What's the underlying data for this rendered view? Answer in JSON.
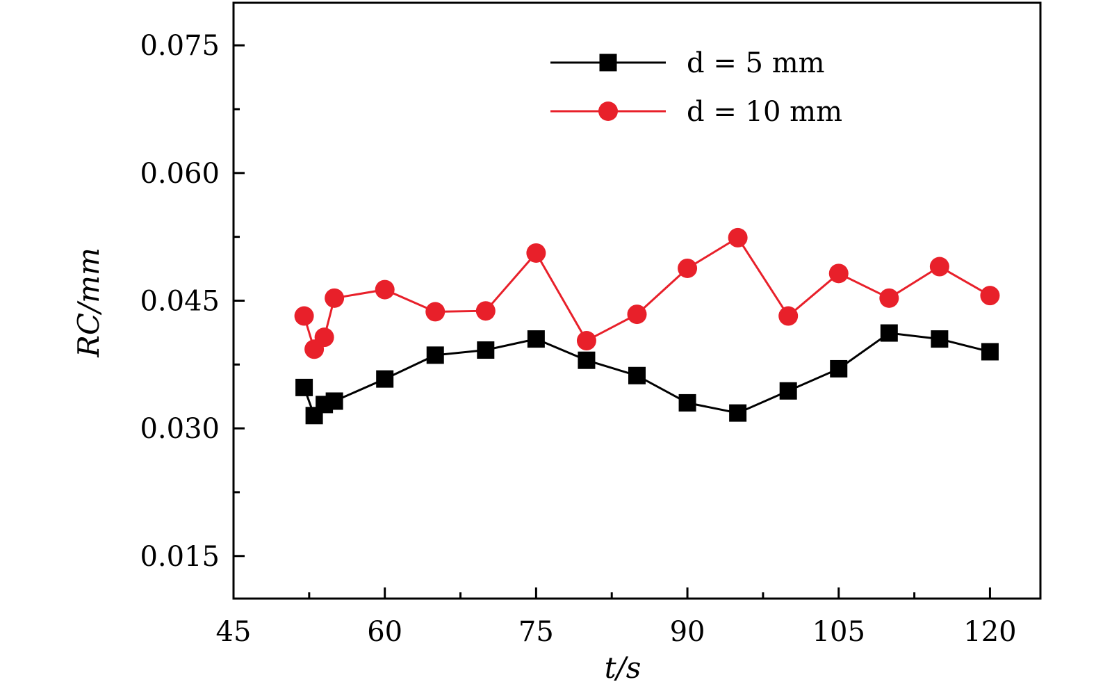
{
  "chart_data": {
    "type": "line",
    "title": "",
    "xlabel": "t/s",
    "ylabel": "RC/mm",
    "xlim": [
      45,
      125
    ],
    "ylim": [
      0.01,
      0.08
    ],
    "x_ticks": [
      45,
      60,
      75,
      90,
      105,
      120
    ],
    "x_tick_labels": [
      "45",
      "60",
      "75",
      "90",
      "105",
      "120"
    ],
    "y_ticks": [
      0.015,
      0.03,
      0.045,
      0.06,
      0.075
    ],
    "y_tick_labels": [
      "0.015",
      "0.030",
      "0.045",
      "0.060",
      "0.075"
    ],
    "grid": false,
    "legend_position": "top-right",
    "series": [
      {
        "name": "d = 5 mm",
        "color": "#000000",
        "marker": "square",
        "x": [
          52,
          53,
          54,
          55,
          60,
          65,
          70,
          75,
          80,
          85,
          90,
          95,
          100,
          105,
          110,
          115,
          120
        ],
        "y": [
          0.0348,
          0.0315,
          0.0328,
          0.0332,
          0.0358,
          0.0386,
          0.0392,
          0.0405,
          0.038,
          0.0362,
          0.033,
          0.0318,
          0.0344,
          0.037,
          0.0412,
          0.0405,
          0.039
        ]
      },
      {
        "name": "d = 10 mm",
        "color": "#e8202a",
        "marker": "circle",
        "x": [
          52,
          53,
          54,
          55,
          60,
          65,
          70,
          75,
          80,
          85,
          90,
          95,
          100,
          105,
          110,
          115,
          120
        ],
        "y": [
          0.0432,
          0.0393,
          0.0407,
          0.0453,
          0.0463,
          0.0437,
          0.0438,
          0.0506,
          0.0403,
          0.0434,
          0.0488,
          0.0524,
          0.0432,
          0.0482,
          0.0453,
          0.049,
          0.0456
        ]
      }
    ]
  }
}
